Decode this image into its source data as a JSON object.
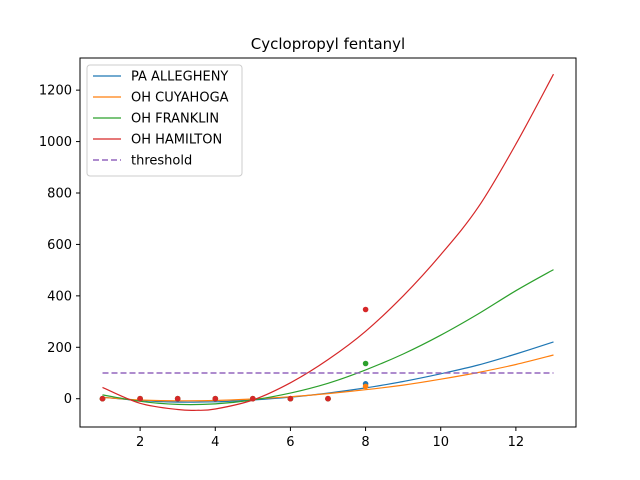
{
  "chart_data": {
    "type": "line",
    "title": "Cyclopropyl fentanyl",
    "xlabel": "",
    "ylabel": "",
    "xlim": [
      0.4,
      13.6
    ],
    "ylim": [
      -110,
      1325
    ],
    "xticks": [
      2,
      4,
      6,
      8,
      10,
      12
    ],
    "yticks": [
      0,
      200,
      400,
      600,
      800,
      1000,
      1200
    ],
    "grid": false,
    "legend_position": "top-left",
    "series": [
      {
        "name": "PA ALLEGHENY",
        "color": "#1f77b4",
        "curve_x": [
          1,
          2,
          3,
          4,
          5,
          6,
          7,
          8,
          9,
          10,
          11,
          12,
          13
        ],
        "curve_y": [
          6,
          -7,
          -13,
          -12,
          -5,
          6,
          22,
          42,
          67,
          97,
          131,
          174,
          221
        ],
        "points": [
          [
            1,
            0
          ],
          [
            2,
            0
          ],
          [
            3,
            0
          ],
          [
            4,
            0
          ],
          [
            5,
            0
          ],
          [
            6,
            0
          ],
          [
            7,
            0
          ],
          [
            8,
            58
          ]
        ]
      },
      {
        "name": "OH CUYAHOGA",
        "color": "#ff7f0e",
        "curve_x": [
          1,
          2,
          3,
          4,
          5,
          6,
          7,
          8,
          9,
          10,
          11,
          12,
          13
        ],
        "curve_y": [
          5,
          -5,
          -8,
          -7,
          -1,
          8,
          20,
          35,
          53,
          76,
          102,
          133,
          170
        ],
        "points": [
          [
            1,
            0
          ],
          [
            2,
            0
          ],
          [
            3,
            0
          ],
          [
            4,
            0
          ],
          [
            5,
            0
          ],
          [
            6,
            0
          ],
          [
            7,
            0
          ],
          [
            8,
            48
          ]
        ]
      },
      {
        "name": "OH FRANKLIN",
        "color": "#2ca02c",
        "curve_x": [
          1,
          2,
          3,
          4,
          5,
          6,
          7,
          8,
          9,
          10,
          11,
          12,
          13
        ],
        "curve_y": [
          15,
          -10,
          -22,
          -20,
          -5,
          22,
          60,
          112,
          174,
          247,
          330,
          420,
          502
        ],
        "points": [
          [
            1,
            0
          ],
          [
            2,
            0
          ],
          [
            3,
            0
          ],
          [
            4,
            0
          ],
          [
            5,
            0
          ],
          [
            6,
            0
          ],
          [
            7,
            0
          ],
          [
            8,
            137
          ]
        ]
      },
      {
        "name": "OH HAMILTON",
        "color": "#d62728",
        "curve_x": [
          1,
          2,
          3,
          3.5,
          4,
          5,
          6,
          7,
          8,
          9,
          10,
          11,
          12,
          13
        ],
        "curve_y": [
          44,
          -18,
          -42,
          -45,
          -40,
          -5,
          62,
          152,
          262,
          400,
          560,
          745,
          990,
          1262
        ],
        "points": [
          [
            1,
            0
          ],
          [
            2,
            0
          ],
          [
            3,
            0
          ],
          [
            4,
            0
          ],
          [
            5,
            0
          ],
          [
            6,
            0
          ],
          [
            7,
            0
          ],
          [
            8,
            347
          ]
        ]
      },
      {
        "name": "threshold",
        "color": "#9467bd",
        "dashed": true,
        "curve_x": [
          1,
          13
        ],
        "curve_y": [
          100,
          100
        ],
        "points": []
      }
    ]
  }
}
